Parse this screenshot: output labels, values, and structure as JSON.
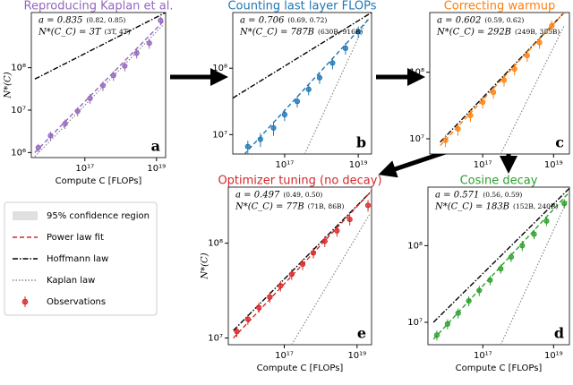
{
  "chart_data": [
    {
      "type": "scatter",
      "title": "Reproducing Kaplan et al.",
      "color": "#9467bd",
      "panel_label": "a",
      "fit_a": "a = 0.835",
      "fit_a_ci": "(0.82, 0.85)",
      "fit_n": "N*(C_C) = 3T",
      "fit_n_ci": "(3T, 4T)",
      "xlabel": "Compute C [FLOPs]",
      "ylabel": "N*(C)",
      "log_x": true,
      "log_y": true,
      "grid": false,
      "xlim": [
        3200000000000000.0,
        1.8e+19
      ],
      "ylim": [
        760000.0,
        2000000000.0
      ],
      "xticks": [
        {
          "value": 1e+17,
          "label": "10¹⁷"
        },
        {
          "value": 1e+19,
          "label": "10¹⁹"
        }
      ],
      "yticks": [
        {
          "value": 1000000.0,
          "label": "10⁶"
        },
        {
          "value": 10000000.0,
          "label": "10⁷"
        },
        {
          "value": 100000000.0,
          "label": "10⁸"
        }
      ],
      "observations": {
        "x": [
          5000000000000000.0,
          1.1e+16,
          2.8e+16,
          6.3e+16,
          1.4e+17,
          3.2e+17,
          6.3e+17,
          1.3e+18,
          2.8e+18,
          6.3e+18,
          1.3e+19
        ],
        "values": [
          1300000.0,
          2500000.0,
          4800000.0,
          9500000.0,
          19000000.0,
          38000000.0,
          66000000.0,
          110000000.0,
          220000000.0,
          380000000.0,
          1300000000.0
        ],
        "errors": [
          300000.0,
          600000.0,
          1200000.0,
          2400000.0,
          5000000.0,
          10000000.0,
          17000000.0,
          28000000.0,
          55000000.0,
          100000000.0,
          300000000.0
        ]
      },
      "fit": {
        "x": [
          4000000000000000.0,
          1.8e+19
        ],
        "values": [
          1000000.0,
          1400000000.0
        ]
      },
      "hoffmann": {
        "x": [
          4000000000000000.0,
          1.8e+19
        ],
        "values": [
          54000000.0,
          2000000000.0
        ]
      },
      "kaplan": {
        "x": [
          4000000000000000.0,
          1.5e+19
        ],
        "values": [
          800000.0,
          1000000000.0
        ]
      }
    },
    {
      "type": "scatter",
      "title": "Counting last layer FLOPs",
      "color": "#1f77b4",
      "panel_label": "b",
      "fit_a": "a = 0.706",
      "fit_a_ci": "(0.69, 0.72)",
      "fit_n": "N*(C_C) = 787B",
      "fit_n_ci": "(630B, 916B)",
      "log_x": true,
      "log_y": true,
      "grid": false,
      "xlim": [
        3900000000000000.0,
        2.3e+19
      ],
      "ylim": [
        5100000.0,
        690000000.0
      ],
      "xticks": [
        {
          "value": 1e+17,
          "label": "10¹⁷"
        },
        {
          "value": 1e+19,
          "label": "10¹⁹"
        }
      ],
      "yticks": [
        {
          "value": 10000000.0,
          "label": "10⁷"
        },
        {
          "value": 100000000.0,
          "label": "10⁸"
        }
      ],
      "observations": {
        "x": [
          1e+16,
          2.2e+16,
          5e+16,
          1e+17,
          2.2e+17,
          4.5e+17,
          8.9e+17,
          2e+18,
          4.5e+18,
          1e+19
        ],
        "values": [
          6600000.0,
          8500000.0,
          12600000.0,
          20000000.0,
          31600000.0,
          48000000.0,
          72000000.0,
          120000000.0,
          200000000.0,
          355000000.0
        ],
        "errors": [
          1500000.0,
          2000000.0,
          3000000.0,
          4000000.0,
          6000000.0,
          9000000.0,
          14000000.0,
          24000000.0,
          40000000.0,
          70000000.0
        ]
      },
      "fit": {
        "x": [
          7900000000000000.0,
          2e+19
        ],
        "values": [
          5000000.0,
          560000000.0
        ]
      },
      "hoffmann": {
        "x": [
          3900000000000000.0,
          2.3e+19
        ],
        "values": [
          35500000.0,
          690000000.0
        ]
      },
      "kaplan": {
        "x": [
          3.5e+17,
          1.7e+19
        ],
        "values": [
          5100000.0,
          540000000.0
        ]
      }
    },
    {
      "type": "scatter",
      "title": "Correcting warmup",
      "color": "#ff7f0e",
      "panel_label": "c",
      "fit_a": "a = 0.602",
      "fit_a_ci": "(0.59, 0.62)",
      "fit_n": "N*(C_C) = 292B",
      "fit_n_ci": "(249B, 355B)",
      "log_x": true,
      "log_y": true,
      "grid": false,
      "xlim": [
        3200000000000000.0,
        2.8e+19
      ],
      "ylim": [
        5900000.0,
        790000000.0
      ],
      "xticks": [
        {
          "value": 1e+17,
          "label": "10¹⁷"
        },
        {
          "value": 1e+19,
          "label": "10¹⁹"
        }
      ],
      "yticks": [
        {
          "value": 10000000.0,
          "label": "10⁷"
        },
        {
          "value": 100000000.0,
          "label": "10⁸"
        }
      ],
      "observations": {
        "x": [
          8900000000000000.0,
          2e+16,
          4.5e+16,
          1e+17,
          2e+17,
          4e+17,
          7.9e+17,
          1.8e+18,
          4e+18,
          8.9e+18
        ],
        "values": [
          9500000.0,
          14100000.0,
          22400000.0,
          35500000.0,
          50000000.0,
          76000000.0,
          112000000.0,
          178000000.0,
          280000000.0,
          500000000.0
        ],
        "errors": [
          2000000.0,
          3000000.0,
          4500000.0,
          7000000.0,
          10000000.0,
          15000000.0,
          22000000.0,
          35000000.0,
          55000000.0,
          100000000.0
        ]
      },
      "fit": {
        "x": [
          6300000000000000.0,
          2e+19
        ],
        "values": [
          7900000.0,
          790000000.0
        ]
      },
      "hoffmann": {
        "x": [
          6300000000000000.0,
          2e+19
        ],
        "values": [
          8900000.0,
          790000000.0
        ]
      },
      "kaplan": {
        "x": [
          3.2e+17,
          2e+19
        ],
        "values": [
          5900000.0,
          500000000.0
        ]
      }
    },
    {
      "type": "scatter",
      "title": "Optimizer tuning (no decay)",
      "color": "#d62728",
      "panel_label": "e",
      "fit_a": "a = 0.497",
      "fit_a_ci": "(0.49, 0.50)",
      "fit_n": "N*(C_C) = 77B",
      "fit_n_ci": "(71B, 86B)",
      "xlabel": "Compute C [FLOPs]",
      "ylabel": "N*(C)",
      "log_x": true,
      "log_y": true,
      "grid": false,
      "xlim": [
        2900000000000000.0,
        2.5e+19
      ],
      "ylim": [
        8500000.0,
        390000000.0
      ],
      "xticks": [
        {
          "value": 1e+17,
          "label": "10¹⁷"
        },
        {
          "value": 1e+19,
          "label": "10¹⁹"
        }
      ],
      "yticks": [
        {
          "value": 10000000.0,
          "label": "10⁷"
        },
        {
          "value": 100000000.0,
          "label": "10⁸"
        }
      ],
      "observations": {
        "x": [
          5000000000000000.0,
          1e+16,
          2e+16,
          4e+16,
          7.9e+16,
          1.6e+17,
          3.2e+17,
          6.3e+17,
          1.3e+18,
          2.8e+18,
          6.3e+18,
          2e+19
        ],
        "values": [
          11700000.0,
          15800000.0,
          21000000.0,
          27000000.0,
          35500000.0,
          47000000.0,
          60000000.0,
          79000000.0,
          105000000.0,
          135000000.0,
          178000000.0,
          250000000.0
        ],
        "errors": [
          1500000.0,
          2000000.0,
          2500000.0,
          3500000.0,
          4500000.0,
          6000000.0,
          8000000.0,
          10000000.0,
          14000000.0,
          18000000.0,
          24000000.0,
          35000000.0
        ]
      },
      "fit": {
        "x": [
          4000000000000000.0,
          2.5e+19
        ],
        "values": [
          10000000.0,
          355000000.0
        ]
      },
      "hoffmann": {
        "x": [
          4000000000000000.0,
          2.5e+19
        ],
        "values": [
          12000000.0,
          355000000.0
        ]
      },
      "kaplan": {
        "x": [
          1.6e+17,
          2.2e+19
        ],
        "values": [
          8500000.0,
          200000000.0
        ]
      }
    },
    {
      "type": "scatter",
      "title": "Cosine decay",
      "color": "#2ca02c",
      "panel_label": "d",
      "fit_a": "a = 0.571",
      "fit_a_ci": "(0.56, 0.59)",
      "fit_n": "N*(C_C) = 183B",
      "fit_n_ci": "(152B, 240B)",
      "xlabel": "Compute C [FLOPs]",
      "log_x": true,
      "log_y": true,
      "grid": false,
      "xlim": [
        2800000000000000.0,
        2.8e+19
      ],
      "ylim": [
        5100000.0,
        580000000.0
      ],
      "xticks": [
        {
          "value": 1e+17,
          "label": "10¹⁷"
        },
        {
          "value": 1e+19,
          "label": "10¹⁹"
        }
      ],
      "yticks": [
        {
          "value": 10000000.0,
          "label": "10⁷"
        },
        {
          "value": 100000000.0,
          "label": "10⁸"
        }
      ],
      "observations": {
        "x": [
          5000000000000000.0,
          1e+16,
          2e+16,
          4e+16,
          7.9e+16,
          1.6e+17,
          3.2e+17,
          6.3e+17,
          1.3e+18,
          2.8e+18,
          6.3e+18,
          2e+19
        ],
        "values": [
          6800000.0,
          9500000.0,
          13200000.0,
          19000000.0,
          26000000.0,
          35500000.0,
          50000000.0,
          71000000.0,
          100000000.0,
          141000000.0,
          210000000.0,
          355000000.0
        ],
        "errors": [
          1000000.0,
          1400000.0,
          2000000.0,
          2800000.0,
          4000000.0,
          5000000.0,
          7000000.0,
          10000000.0,
          15000000.0,
          20000000.0,
          30000000.0,
          50000000.0
        ]
      },
      "fit": {
        "x": [
          4000000000000000.0,
          2.8e+19
        ],
        "values": [
          6000000.0,
          500000000.0
        ]
      },
      "hoffmann": {
        "x": [
          4000000000000000.0,
          2.8e+19
        ],
        "values": [
          10000000.0,
          560000000.0
        ]
      },
      "kaplan": {
        "x": [
          3.2e+17,
          2.5e+19
        ],
        "values": [
          5100000.0,
          400000000.0
        ]
      }
    }
  ],
  "legend": [
    {
      "label": "95% confidence region",
      "color": "#e0e0e0"
    },
    {
      "label": "Power law fit",
      "color": "#d62728"
    },
    {
      "label": "Hoffmann law",
      "color": "#000000"
    },
    {
      "label": "Kaplan law",
      "color": "#888888"
    },
    {
      "label": "Observations",
      "color": "#d62728"
    }
  ]
}
